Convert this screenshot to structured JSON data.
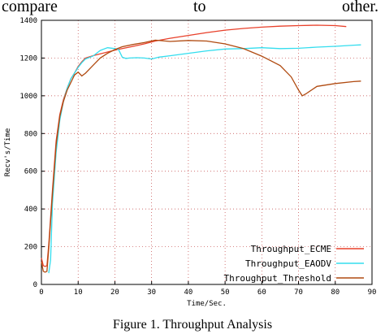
{
  "text_above": [
    "compare",
    "to",
    "other."
  ],
  "caption": "Figure 1.  Throughput Analysis",
  "chart_data": {
    "type": "line",
    "title": "",
    "xlabel": "Time/Sec.",
    "ylabel": "Recv's/Time",
    "xlim": [
      0,
      90
    ],
    "ylim": [
      0,
      1400
    ],
    "xticks": [
      0,
      10,
      20,
      30,
      40,
      50,
      60,
      70,
      80,
      90
    ],
    "yticks": [
      0,
      200,
      400,
      600,
      800,
      1000,
      1200,
      1400
    ],
    "grid": true,
    "legend_position": "bottom-right",
    "series": [
      {
        "name": "Throughput_ECME",
        "color": "#e8402a",
        "points": [
          [
            0,
            140
          ],
          [
            0.5,
            100
          ],
          [
            1,
            95
          ],
          [
            1.5,
            100
          ],
          [
            2,
            210
          ],
          [
            3,
            500
          ],
          [
            4,
            760
          ],
          [
            5,
            900
          ],
          [
            6,
            980
          ],
          [
            7,
            1040
          ],
          [
            8,
            1090
          ],
          [
            9,
            1120
          ],
          [
            10,
            1155
          ],
          [
            11,
            1180
          ],
          [
            12,
            1200
          ],
          [
            14,
            1212
          ],
          [
            16,
            1222
          ],
          [
            18,
            1232
          ],
          [
            20,
            1242
          ],
          [
            22,
            1250
          ],
          [
            25,
            1262
          ],
          [
            28,
            1275
          ],
          [
            31,
            1290
          ],
          [
            35,
            1305
          ],
          [
            40,
            1320
          ],
          [
            45,
            1335
          ],
          [
            50,
            1348
          ],
          [
            55,
            1357
          ],
          [
            60,
            1364
          ],
          [
            65,
            1369
          ],
          [
            70,
            1372
          ],
          [
            75,
            1374
          ],
          [
            80,
            1372
          ],
          [
            83,
            1367
          ]
        ]
      },
      {
        "name": "Throughput_EAODV",
        "color": "#33ddee",
        "points": [
          [
            2,
            60
          ],
          [
            2.5,
            130
          ],
          [
            3,
            430
          ],
          [
            4,
            700
          ],
          [
            5,
            870
          ],
          [
            6,
            970
          ],
          [
            7,
            1040
          ],
          [
            8,
            1090
          ],
          [
            9,
            1120
          ],
          [
            10,
            1150
          ],
          [
            11,
            1175
          ],
          [
            12,
            1195
          ],
          [
            14,
            1210
          ],
          [
            16,
            1240
          ],
          [
            18,
            1255
          ],
          [
            20,
            1250
          ],
          [
            21,
            1245
          ],
          [
            22,
            1205
          ],
          [
            23,
            1198
          ],
          [
            24,
            1200
          ],
          [
            26,
            1202
          ],
          [
            28,
            1200
          ],
          [
            30,
            1195
          ],
          [
            32,
            1205
          ],
          [
            35,
            1212
          ],
          [
            40,
            1225
          ],
          [
            45,
            1238
          ],
          [
            50,
            1248
          ],
          [
            55,
            1250
          ],
          [
            60,
            1255
          ],
          [
            65,
            1250
          ],
          [
            70,
            1252
          ],
          [
            75,
            1258
          ],
          [
            80,
            1262
          ],
          [
            85,
            1268
          ],
          [
            87,
            1270
          ]
        ]
      },
      {
        "name": "Throughput_Threshold",
        "color": "#b04a10",
        "points": [
          [
            0,
            120
          ],
          [
            0.5,
            70
          ],
          [
            1,
            65
          ],
          [
            1.5,
            70
          ],
          [
            2,
            190
          ],
          [
            3,
            480
          ],
          [
            4,
            740
          ],
          [
            5,
            890
          ],
          [
            6,
            970
          ],
          [
            7,
            1030
          ],
          [
            8,
            1070
          ],
          [
            9,
            1110
          ],
          [
            10,
            1125
          ],
          [
            11,
            1105
          ],
          [
            12,
            1120
          ],
          [
            14,
            1160
          ],
          [
            16,
            1200
          ],
          [
            18,
            1225
          ],
          [
            20,
            1245
          ],
          [
            22,
            1260
          ],
          [
            25,
            1272
          ],
          [
            28,
            1282
          ],
          [
            31,
            1295
          ],
          [
            35,
            1288
          ],
          [
            40,
            1293
          ],
          [
            45,
            1290
          ],
          [
            50,
            1275
          ],
          [
            55,
            1250
          ],
          [
            60,
            1210
          ],
          [
            65,
            1160
          ],
          [
            68,
            1100
          ],
          [
            70,
            1030
          ],
          [
            71,
            1000
          ],
          [
            72,
            1010
          ],
          [
            75,
            1050
          ],
          [
            80,
            1065
          ],
          [
            85,
            1075
          ],
          [
            87,
            1078
          ]
        ]
      }
    ]
  }
}
